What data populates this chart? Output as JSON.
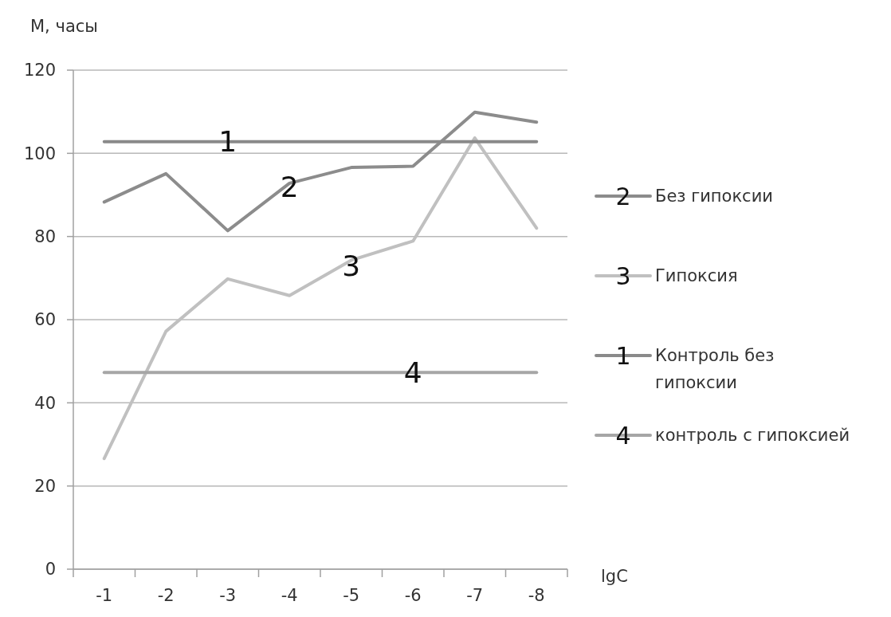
{
  "chart_data": {
    "type": "line",
    "ylabel": "M, часы",
    "xlabel": "lgC",
    "categories": [
      "-1",
      "-2",
      "-3",
      "-4",
      "-5",
      "-6",
      "-7",
      "-8"
    ],
    "series": [
      {
        "name": "Без гипоксии",
        "color": "#8c8c8c",
        "values": [
          88.3,
          95.1,
          81.4,
          92.8,
          96.6,
          96.9,
          109.9,
          107.5
        ]
      },
      {
        "name": "Гипоксия",
        "color": "#c0c0c0",
        "values": [
          26.6,
          57.2,
          69.8,
          65.8,
          74.3,
          78.9,
          103.7,
          82
        ]
      },
      {
        "name": "Контроль без гипоксии",
        "color": "#8a8a8a",
        "values": [
          102.8,
          102.8,
          102.8,
          102.8,
          102.8,
          102.8,
          102.8,
          102.8
        ]
      },
      {
        "name": "контроль с гипоксией",
        "color": "#a6a6a6",
        "values": [
          47.3,
          47.3,
          47.3,
          47.3,
          47.3,
          47.3,
          47.3,
          47.3
        ]
      }
    ],
    "annotations": [
      {
        "text": "2",
        "x": "-4",
        "y": 92
      },
      {
        "text": "3",
        "x": "-5",
        "y": 73
      },
      {
        "text": "1",
        "x": "-3",
        "y": 102.8
      },
      {
        "text": "4",
        "x": "-6",
        "y": 47.3
      }
    ],
    "ylim": [
      0,
      120
    ],
    "yticks": [
      0,
      20,
      40,
      60,
      80,
      100,
      120
    ],
    "grid": "y",
    "legend": "right",
    "line_style": "solid"
  }
}
